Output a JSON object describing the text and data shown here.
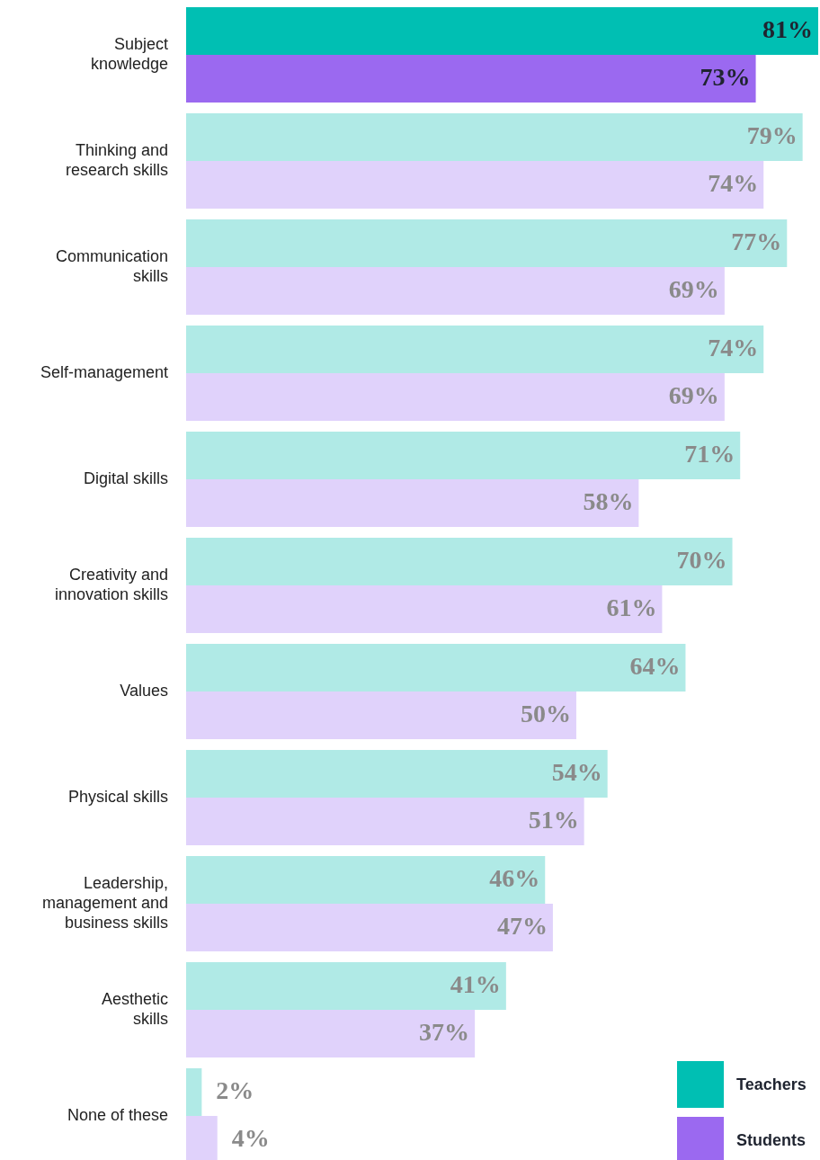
{
  "chart_data": {
    "type": "bar",
    "orientation": "horizontal",
    "categories": [
      "Subject\nknowledge",
      "Thinking and\nresearch skills",
      "Communication\nskills",
      "Self-management",
      "Digital skills",
      "Creativity and\ninnovation skills",
      "Values",
      "Physical skills",
      "Leadership,\nmanagement and\nbusiness skills",
      "Aesthetic\nskills",
      "None of these"
    ],
    "series": [
      {
        "name": "Teachers",
        "color": "#00bfb3",
        "colors": [
          "#00bfb3",
          "#b0eae6",
          "#b0eae6",
          "#b0eae6",
          "#b0eae6",
          "#b0eae6",
          "#b0eae6",
          "#b0eae6",
          "#b0eae6",
          "#b0eae6",
          "#b0eae6"
        ],
        "values": [
          81,
          79,
          77,
          74,
          71,
          70,
          64,
          54,
          46,
          41,
          2
        ],
        "value_labels": [
          "81%",
          "79%",
          "77%",
          "74%",
          "71%",
          "70%",
          "64%",
          "54%",
          "46%",
          "41%",
          "2%"
        ]
      },
      {
        "name": "Students",
        "color": "#9b69f0",
        "colors": [
          "#9b69f0",
          "#e0d2fb",
          "#e0d2fb",
          "#e0d2fb",
          "#e0d2fb",
          "#e0d2fb",
          "#e0d2fb",
          "#e0d2fb",
          "#e0d2fb",
          "#e0d2fb",
          "#e0d2fb"
        ],
        "values": [
          73,
          74,
          69,
          69,
          58,
          61,
          50,
          51,
          47,
          37,
          4
        ],
        "value_labels": [
          "73%",
          "74%",
          "69%",
          "69%",
          "58%",
          "61%",
          "50%",
          "51%",
          "47%",
          "37%",
          "4%"
        ]
      }
    ],
    "legend": "bottom right"
  }
}
